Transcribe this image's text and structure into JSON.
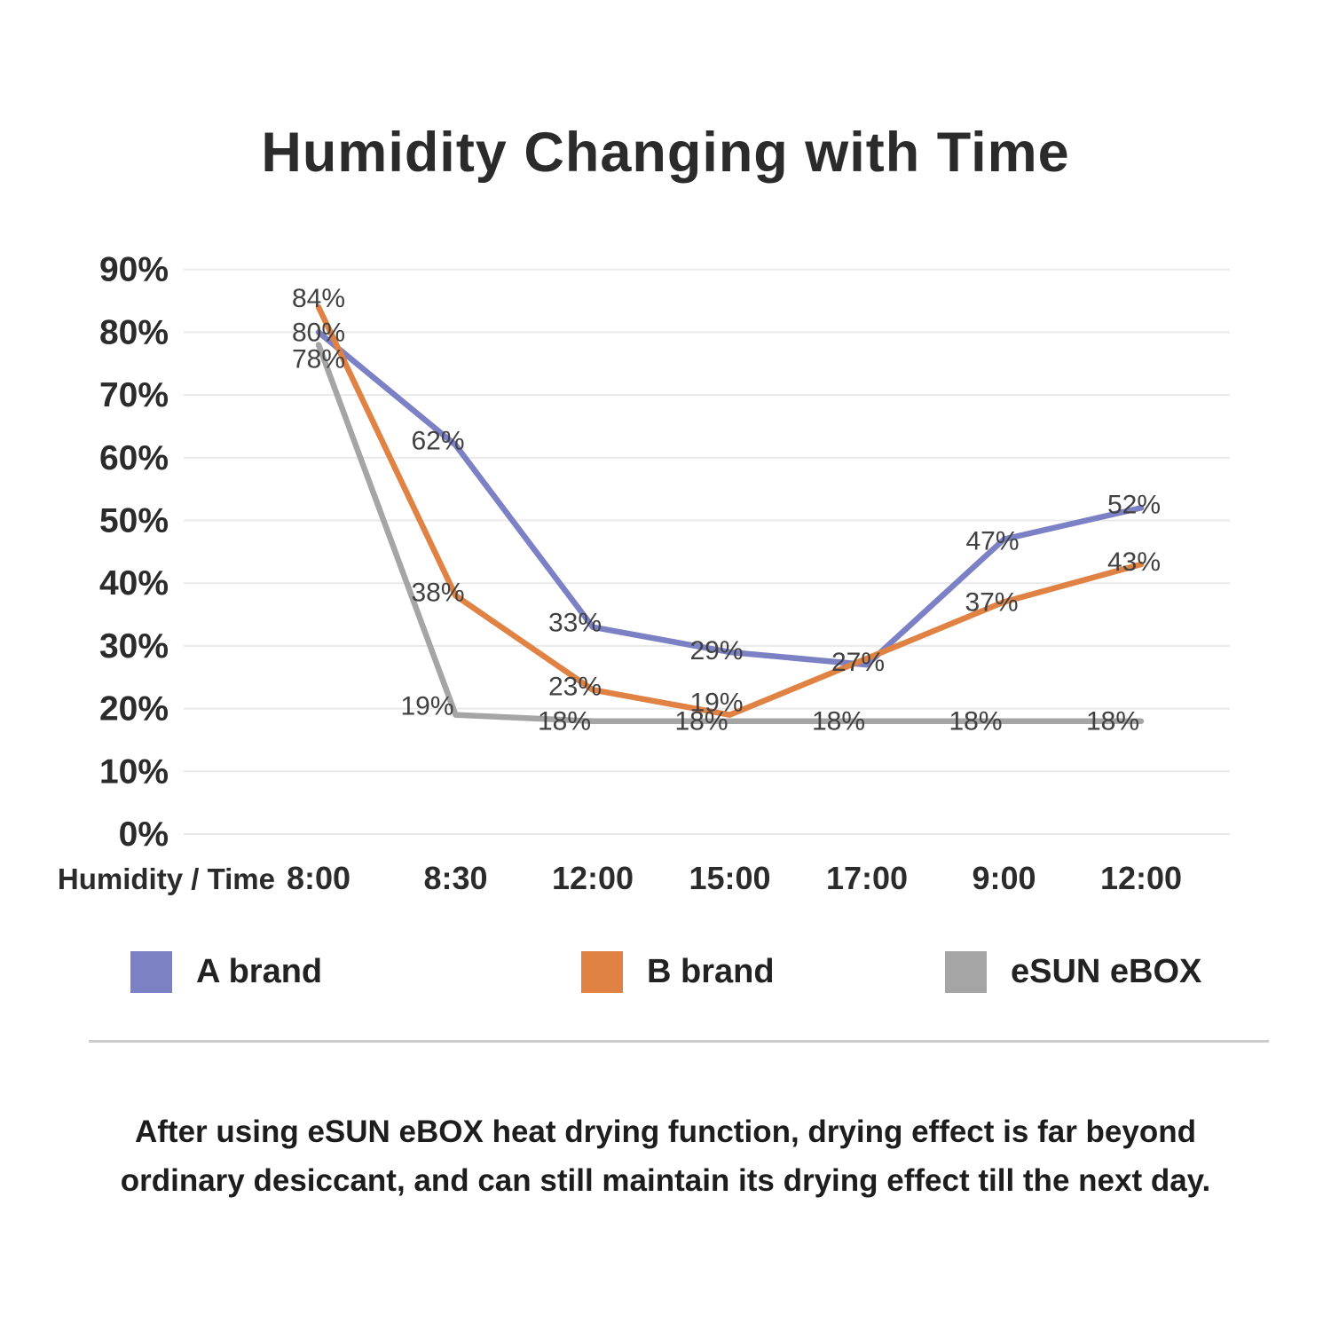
{
  "title": "Humidity Changing with Time",
  "chart_data": {
    "type": "line",
    "title": "Humidity Changing with Time",
    "x_axis_title": "Humidity / Time",
    "categories": [
      "8:00",
      "8:30",
      "12:00",
      "15:00",
      "17:00",
      "9:00",
      "12:00"
    ],
    "series": [
      {
        "name": "A brand",
        "color": "#7C81C6",
        "values": [
          80,
          62,
          33,
          29,
          27,
          47,
          52
        ],
        "labels": [
          "80%",
          "62%",
          "33%",
          "29%",
          "27%",
          "47%",
          "52%"
        ]
      },
      {
        "name": "B brand",
        "color": "#E08244",
        "values": [
          84,
          38,
          23,
          19,
          28,
          37,
          43
        ],
        "labels": [
          "84%",
          "38%",
          "23%",
          "19%",
          "",
          "37%",
          "43%"
        ]
      },
      {
        "name": "eSUN eBOX",
        "color": "#A5A5A5",
        "values": [
          78,
          19,
          18,
          18,
          18,
          18,
          18
        ],
        "labels": [
          "78%",
          "19%",
          "18%",
          "18%",
          "18%",
          "18%",
          "18%"
        ]
      }
    ],
    "y_ticks": [
      "90%",
      "80%",
      "70%",
      "60%",
      "50%",
      "40%",
      "30%",
      "20%",
      "10%",
      "0%"
    ],
    "ylim": [
      0,
      90
    ],
    "grid": true,
    "legend_position": "bottom"
  },
  "caption": {
    "lines": [
      "After using eSUN eBOX heat drying function, drying effect is far beyond",
      "ordinary desiccant, and can still maintain its drying effect till the next day."
    ]
  }
}
